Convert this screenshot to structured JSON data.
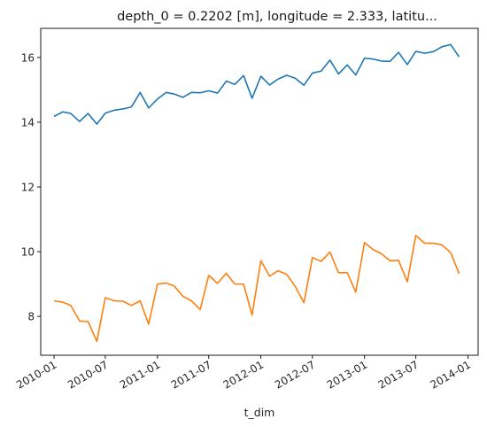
{
  "chart_data": {
    "type": "line",
    "title": "depth_0 = 0.2202 [m], longitude = 2.333, latitu...",
    "xlabel": "t_dim",
    "ylabel": "",
    "x_ticks": [
      "2010-01",
      "2010-07",
      "2011-01",
      "2011-07",
      "2012-01",
      "2012-07",
      "2013-01",
      "2013-07",
      "2014-01"
    ],
    "y_ticks": [
      "8",
      "10",
      "12",
      "14",
      "16"
    ],
    "xlim": [
      "2009-11-15",
      "2014-02-06"
    ],
    "ylim": [
      6.8,
      16.9
    ],
    "grid": false,
    "legend": "none",
    "x": [
      "2010-01",
      "2010-02",
      "2010-03",
      "2010-04",
      "2010-05",
      "2010-06",
      "2010-07",
      "2010-08",
      "2010-09",
      "2010-10",
      "2010-11",
      "2010-12",
      "2011-01",
      "2011-02",
      "2011-03",
      "2011-04",
      "2011-05",
      "2011-06",
      "2011-07",
      "2011-08",
      "2011-09",
      "2011-10",
      "2011-11",
      "2011-12",
      "2012-01",
      "2012-02",
      "2012-03",
      "2012-04",
      "2012-05",
      "2012-06",
      "2012-07",
      "2012-08",
      "2012-09",
      "2012-10",
      "2012-11",
      "2012-12",
      "2013-01",
      "2013-02",
      "2013-03",
      "2013-04",
      "2013-05",
      "2013-06",
      "2013-07",
      "2013-08",
      "2013-09",
      "2013-10",
      "2013-11",
      "2013-12"
    ],
    "series": [
      {
        "color": "#1f77b4",
        "values": [
          14.18,
          14.32,
          14.27,
          14.02,
          14.27,
          13.94,
          14.28,
          14.37,
          14.41,
          14.47,
          14.92,
          14.44,
          14.72,
          14.92,
          14.87,
          14.77,
          14.92,
          14.91,
          14.97,
          14.9,
          15.27,
          15.17,
          15.44,
          14.74,
          15.42,
          15.15,
          15.33,
          15.45,
          15.36,
          15.14,
          15.52,
          15.58,
          15.92,
          15.49,
          15.77,
          15.46,
          15.98,
          15.95,
          15.89,
          15.88,
          16.16,
          15.78,
          16.19,
          16.13,
          16.18,
          16.33,
          16.4,
          16.02
        ]
      },
      {
        "color": "#ff7f0e",
        "values": [
          8.48,
          8.44,
          8.34,
          7.86,
          7.84,
          7.23,
          8.58,
          8.48,
          8.47,
          8.34,
          8.48,
          7.76,
          9.0,
          9.03,
          8.94,
          8.62,
          8.48,
          8.21,
          9.27,
          9.02,
          9.33,
          9.0,
          9.0,
          8.04,
          9.72,
          9.24,
          9.41,
          9.3,
          8.93,
          8.42,
          9.82,
          9.7,
          9.99,
          9.35,
          9.35,
          8.75,
          10.28,
          10.06,
          9.94,
          9.72,
          9.73,
          9.07,
          10.5,
          10.26,
          10.26,
          10.21,
          9.97,
          9.32
        ]
      }
    ]
  }
}
